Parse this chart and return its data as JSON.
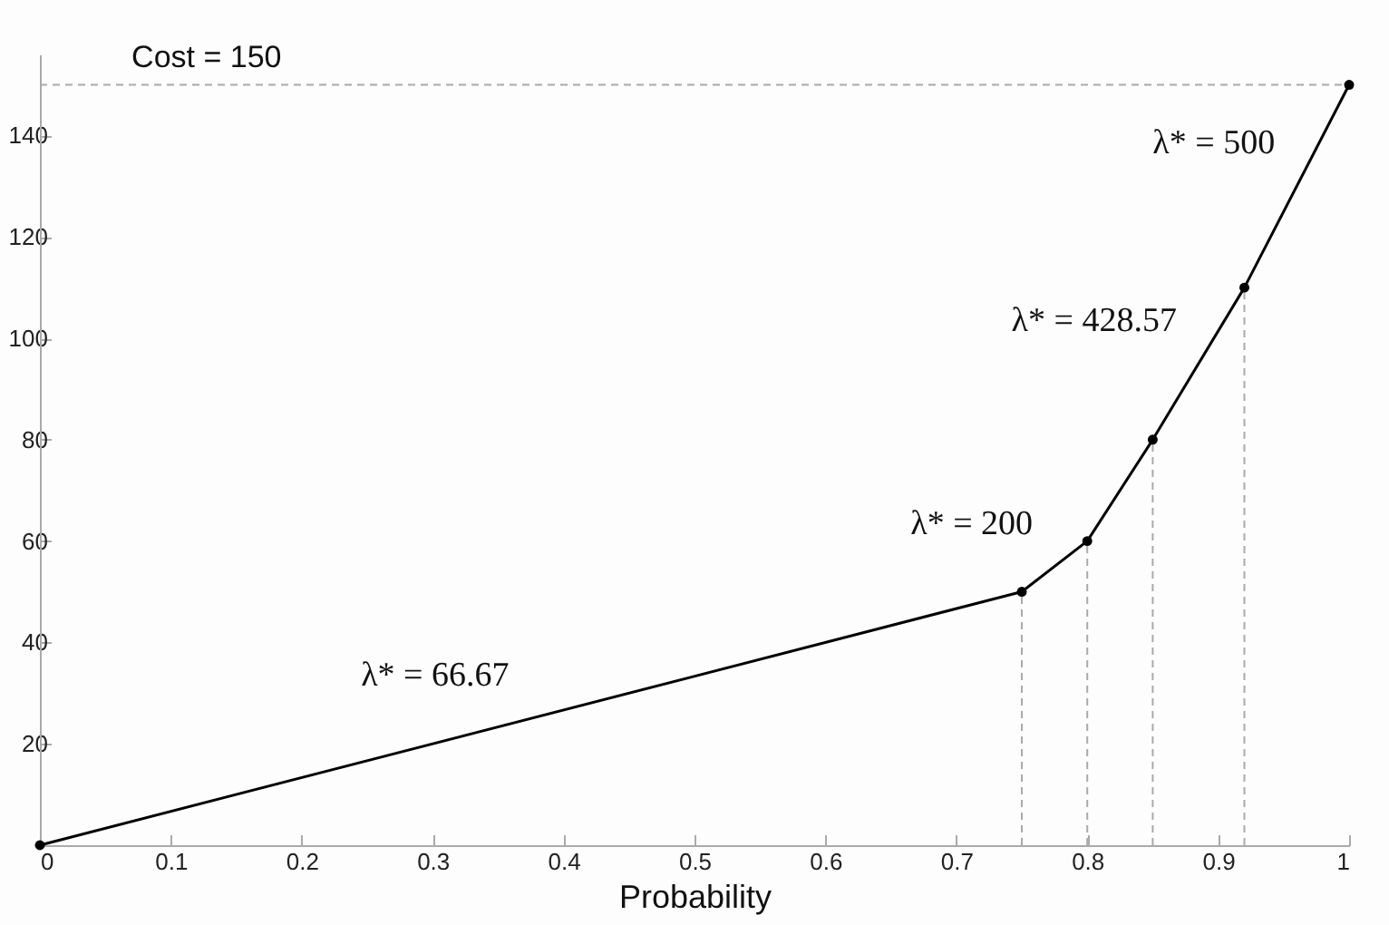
{
  "chart_data": {
    "type": "line",
    "xlabel": "Probability",
    "x": [
      0,
      0.75,
      0.8,
      0.85,
      0.92,
      1
    ],
    "series": [
      {
        "color": "#000000",
        "values": [
          0,
          50,
          60,
          80,
          110,
          150
        ]
      }
    ],
    "marker": "circle",
    "line_style": "solid",
    "xlim": [
      0,
      1
    ],
    "xticks": [
      0,
      0.1,
      0.2,
      0.3,
      0.4,
      0.5,
      0.6,
      0.7,
      0.8,
      0.9,
      1
    ],
    "ylim": [
      0,
      156
    ],
    "yticks": [
      20,
      40,
      60,
      80,
      100,
      120,
      140
    ],
    "grid": false,
    "ref_lines": [
      {
        "axis": "y",
        "value": 150,
        "label": "Cost = 150",
        "color": "#aaaaaa",
        "line_style": "dashed"
      },
      {
        "axis": "x",
        "value": 0.75,
        "color": "#aaaaaa",
        "line_style": "dashed"
      },
      {
        "axis": "x",
        "value": 0.8,
        "color": "#aaaaaa",
        "line_style": "dashed"
      },
      {
        "axis": "x",
        "value": 0.85,
        "color": "#aaaaaa",
        "line_style": "dashed"
      },
      {
        "axis": "x",
        "value": 0.92,
        "color": "#aaaaaa",
        "line_style": "dashed"
      }
    ],
    "annotations": [
      "λ* = 66.67",
      "λ* = 200",
      "λ* = 428.57",
      "λ* = 500"
    ]
  }
}
